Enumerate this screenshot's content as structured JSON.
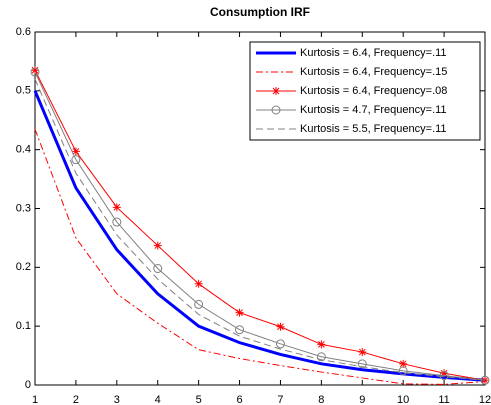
{
  "chart_data": {
    "type": "line",
    "title": "Consumption IRF",
    "x": [
      1,
      2,
      3,
      4,
      5,
      6,
      7,
      8,
      9,
      10,
      11,
      12
    ],
    "xlim": [
      1,
      12
    ],
    "xticks": [
      1,
      2,
      3,
      4,
      5,
      6,
      7,
      8,
      9,
      10,
      11,
      12
    ],
    "ylim": [
      0,
      0.6
    ],
    "yticks": [
      0,
      0.1,
      0.2,
      0.3,
      0.4,
      0.5,
      0.6
    ],
    "legend": "top-right",
    "series": [
      {
        "name": "Kurtosis = 6.4, Frequency=.11",
        "color": "#0000ff",
        "dash": "solid",
        "marker": "none",
        "linewidth": 3,
        "values": [
          0.5,
          0.335,
          0.23,
          0.155,
          0.1,
          0.072,
          0.052,
          0.036,
          0.026,
          0.019,
          0.013,
          0.008
        ]
      },
      {
        "name": "Kurtosis = 6.4, Frequency=.15",
        "color": "#ff0000",
        "dash": "dashdot",
        "marker": "none",
        "linewidth": 1,
        "values": [
          0.435,
          0.25,
          0.155,
          0.105,
          0.06,
          0.045,
          0.033,
          0.022,
          0.012,
          0.002,
          0.001,
          0.006
        ]
      },
      {
        "name": "Kurtosis = 6.4, Frequency=.08",
        "color": "#ff0000",
        "dash": "solid",
        "marker": "star",
        "linewidth": 1,
        "values": [
          0.535,
          0.397,
          0.302,
          0.237,
          0.172,
          0.123,
          0.099,
          0.069,
          0.056,
          0.036,
          0.02,
          0.008
        ]
      },
      {
        "name": "Kurtosis = 4.7, Frequency=.11",
        "color": "#808080",
        "dash": "solid",
        "marker": "circle",
        "linewidth": 1,
        "values": [
          0.532,
          0.383,
          0.277,
          0.198,
          0.137,
          0.094,
          0.07,
          0.048,
          0.036,
          0.024,
          0.016,
          0.008
        ]
      },
      {
        "name": "Kurtosis = 5.5, Frequency=.11",
        "color": "#808080",
        "dash": "dashed",
        "marker": "none",
        "linewidth": 1,
        "values": [
          0.52,
          0.36,
          0.255,
          0.18,
          0.12,
          0.083,
          0.061,
          0.043,
          0.031,
          0.021,
          0.014,
          0.008
        ]
      }
    ]
  }
}
